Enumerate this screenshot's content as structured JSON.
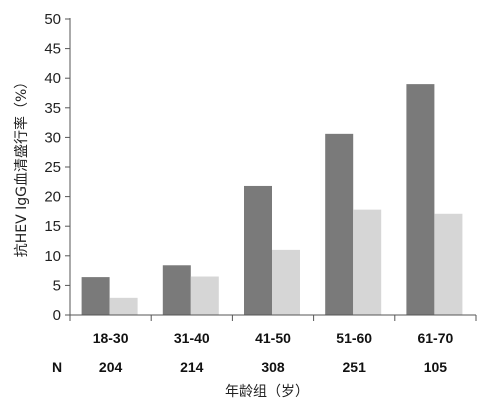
{
  "chart_data": {
    "type": "bar",
    "title": "",
    "xlabel": "年龄组（岁）",
    "ylabel": "抗HEV IgG血清盛行率（%）",
    "ylim": [
      0,
      50
    ],
    "yticks": [
      0,
      5,
      10,
      15,
      20,
      25,
      30,
      35,
      40,
      45,
      50
    ],
    "categories": [
      "18-30",
      "31-40",
      "41-50",
      "51-60",
      "61-70"
    ],
    "n_row": {
      "label": "N",
      "values": [
        "204",
        "214",
        "308",
        "251",
        "105"
      ]
    },
    "series": [
      {
        "values": [
          6.4,
          8.4,
          21.8,
          30.6,
          39.0
        ],
        "color": "#7a7a7a"
      },
      {
        "values": [
          2.9,
          6.5,
          11.0,
          17.8,
          17.1
        ],
        "color": "#d6d6d6"
      }
    ],
    "grid": false,
    "legend": "none"
  }
}
